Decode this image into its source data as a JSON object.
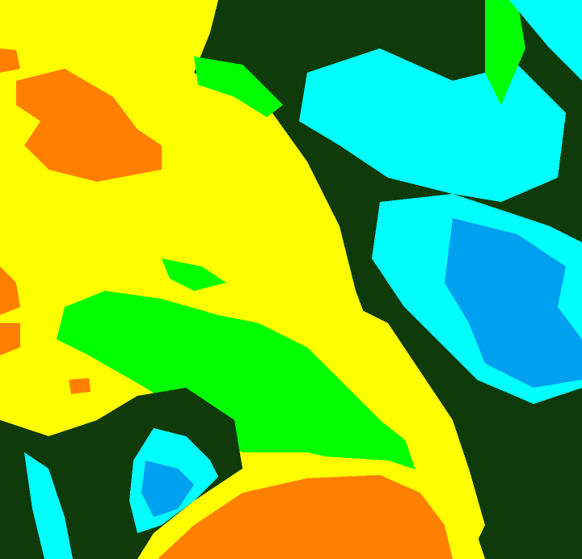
{
  "map": {
    "classes": [
      {
        "key": "yellow",
        "color": "#ffff00"
      },
      {
        "key": "orange",
        "color": "#ff8000"
      },
      {
        "key": "green",
        "color": "#00ff00"
      },
      {
        "key": "dark_green",
        "color": "#0f3a0a"
      },
      {
        "key": "cyan",
        "color": "#00ffff"
      },
      {
        "key": "blue",
        "color": "#00a0f0"
      }
    ]
  }
}
